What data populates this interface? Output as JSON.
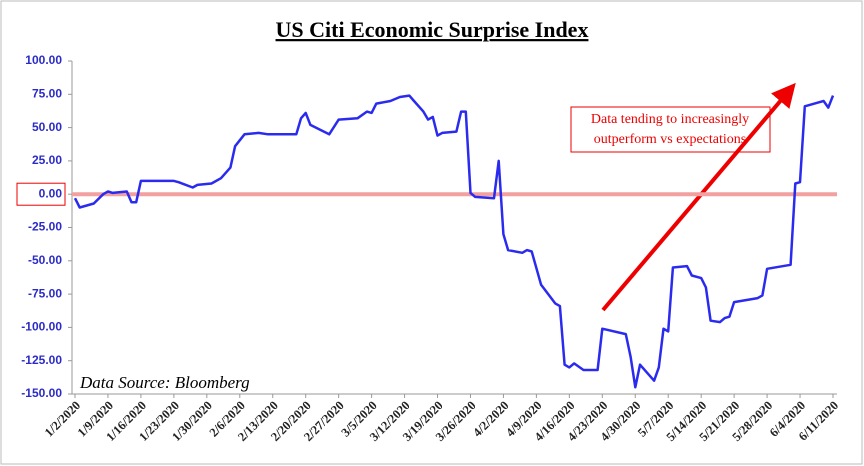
{
  "chart_data": {
    "type": "line",
    "title": "US Citi Economic Surprise Index",
    "source": "Data Source: Bloomberg",
    "annotation": [
      "Data tending to increasingly",
      "outperform vs expectations"
    ],
    "highlight_tick": {
      "value": 0,
      "label": "0.00"
    },
    "grid": false,
    "xlim": [
      "1/2/2020",
      "6/11/2020"
    ],
    "xticks": [
      "1/2/2020",
      "1/9/2020",
      "1/16/2020",
      "1/23/2020",
      "1/30/2020",
      "2/6/2020",
      "2/13/2020",
      "2/20/2020",
      "2/27/2020",
      "3/5/2020",
      "3/12/2020",
      "3/19/2020",
      "3/26/2020",
      "4/2/2020",
      "4/9/2020",
      "4/16/2020",
      "4/23/2020",
      "4/30/2020",
      "5/7/2020",
      "5/14/2020",
      "5/21/2020",
      "5/28/2020",
      "6/4/2020",
      "6/11/2020"
    ],
    "ylim": [
      -150,
      100
    ],
    "yticks": [
      {
        "value": -150,
        "label": "-150.00"
      },
      {
        "value": -125,
        "label": "-125.00"
      },
      {
        "value": -100,
        "label": "-100.00"
      },
      {
        "value": -75,
        "label": "-75.00"
      },
      {
        "value": -50,
        "label": "-50.00"
      },
      {
        "value": -25,
        "label": "-25.00"
      },
      {
        "value": 0,
        "label": "0.00"
      },
      {
        "value": 25,
        "label": "25.00"
      },
      {
        "value": 50,
        "label": "50.00"
      },
      {
        "value": 75,
        "label": "75.00"
      },
      {
        "value": 100,
        "label": "100.00"
      }
    ],
    "x": [
      "1/2/2020",
      "1/3/2020",
      "1/6/2020",
      "1/8/2020",
      "1/9/2020",
      "1/10/2020",
      "1/13/2020",
      "1/14/2020",
      "1/15/2020",
      "1/16/2020",
      "1/20/2020",
      "1/23/2020",
      "1/24/2020",
      "1/27/2020",
      "1/28/2020",
      "1/31/2020",
      "2/2/2020",
      "2/4/2020",
      "2/5/2020",
      "2/7/2020",
      "2/10/2020",
      "2/12/2020",
      "2/18/2020",
      "2/19/2020",
      "2/20/2020",
      "2/21/2020",
      "2/25/2020",
      "2/27/2020",
      "3/2/2020",
      "3/4/2020",
      "3/5/2020",
      "3/6/2020",
      "3/9/2020",
      "3/11/2020",
      "3/13/2020",
      "3/14/2020",
      "3/16/2020",
      "3/17/2020",
      "3/18/2020",
      "3/19/2020",
      "3/20/2020",
      "3/23/2020",
      "3/24/2020",
      "3/25/2020",
      "3/26/2020",
      "3/27/2020",
      "3/31/2020",
      "4/1/2020",
      "4/2/2020",
      "4/3/2020",
      "4/6/2020",
      "4/7/2020",
      "4/8/2020",
      "4/10/2020",
      "4/13/2020",
      "4/14/2020",
      "4/15/2020",
      "4/16/2020",
      "4/17/2020",
      "4/19/2020",
      "4/22/2020",
      "4/23/2020",
      "4/28/2020",
      "4/29/2020",
      "4/30/2020",
      "5/1/2020",
      "5/4/2020",
      "5/5/2020",
      "5/6/2020",
      "5/7/2020",
      "5/8/2020",
      "5/11/2020",
      "5/12/2020",
      "5/14/2020",
      "5/15/2020",
      "5/16/2020",
      "5/18/2020",
      "5/19/2020",
      "5/20/2020",
      "5/21/2020",
      "5/26/2020",
      "5/27/2020",
      "5/28/2020",
      "6/2/2020",
      "6/3/2020",
      "6/4/2020",
      "6/5/2020",
      "6/8/2020",
      "6/9/2020",
      "6/10/2020",
      "6/11/2020"
    ],
    "series": [
      {
        "name": "US Citi Economic Surprise Index",
        "color": "#2b2bf0",
        "values": [
          -3,
          -10,
          -7,
          0,
          2,
          1,
          2,
          -6,
          -6,
          10,
          10,
          10,
          9,
          5,
          7,
          8,
          12,
          20,
          36,
          45,
          46,
          45,
          45,
          57,
          61,
          52,
          45,
          56,
          57,
          62,
          61,
          68,
          70,
          73,
          74,
          70,
          62,
          56,
          58,
          44,
          46,
          47,
          62,
          62,
          1,
          -2,
          -3,
          25,
          -30,
          -42,
          -44,
          -42,
          -43,
          -68,
          -82,
          -84,
          -128,
          -130,
          -127,
          -132,
          -132,
          -101,
          -105,
          -122,
          -145,
          -128,
          -140,
          -130,
          -101,
          -103,
          -55,
          -54,
          -61,
          -63,
          -70,
          -95,
          -96,
          -93,
          -92,
          -81,
          -78,
          -76,
          -56,
          -53,
          8,
          9,
          66,
          69,
          70,
          65,
          74
        ]
      }
    ]
  }
}
